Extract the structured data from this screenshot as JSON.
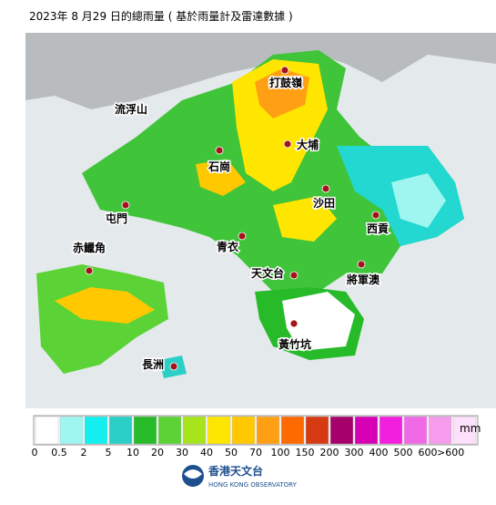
{
  "title": "2023年 8 月29 日的總雨量 ( 基於雨量計及雷達數據 )",
  "places": [
    {
      "label": "打鼓嶺"
    },
    {
      "label": "流浮山"
    },
    {
      "label": "大埔"
    },
    {
      "label": "石崗"
    },
    {
      "label": "沙田"
    },
    {
      "label": "屯門"
    },
    {
      "label": "西貢"
    },
    {
      "label": "青衣"
    },
    {
      "label": "赤鱲角"
    },
    {
      "label": "天文台"
    },
    {
      "label": "將軍澳"
    },
    {
      "label": "黃竹坑"
    },
    {
      "label": "長洲"
    }
  ],
  "legend": {
    "unit": "mm",
    "colors": [
      "#ffffff",
      "#9ff5f0",
      "#14f0f0",
      "#2ccfc7",
      "#27bb2a",
      "#5bd336",
      "#a7e41c",
      "#ffe600",
      "#ffc800",
      "#ff9f14",
      "#ff6a00",
      "#d63a13",
      "#a6006a",
      "#d600b5",
      "#f21fde",
      "#f06ae8",
      "#f79ced",
      "#fde0fb"
    ],
    "labels": [
      "0",
      "0.5",
      "2",
      "5",
      "10",
      "20",
      "30",
      "40",
      "50",
      "70",
      "100",
      "150",
      "200",
      "300",
      "400",
      "500",
      "600",
      ">600"
    ]
  },
  "logo": {
    "name": "香港天文台",
    "name_en": "HONG KONG OBSERVATORY"
  }
}
